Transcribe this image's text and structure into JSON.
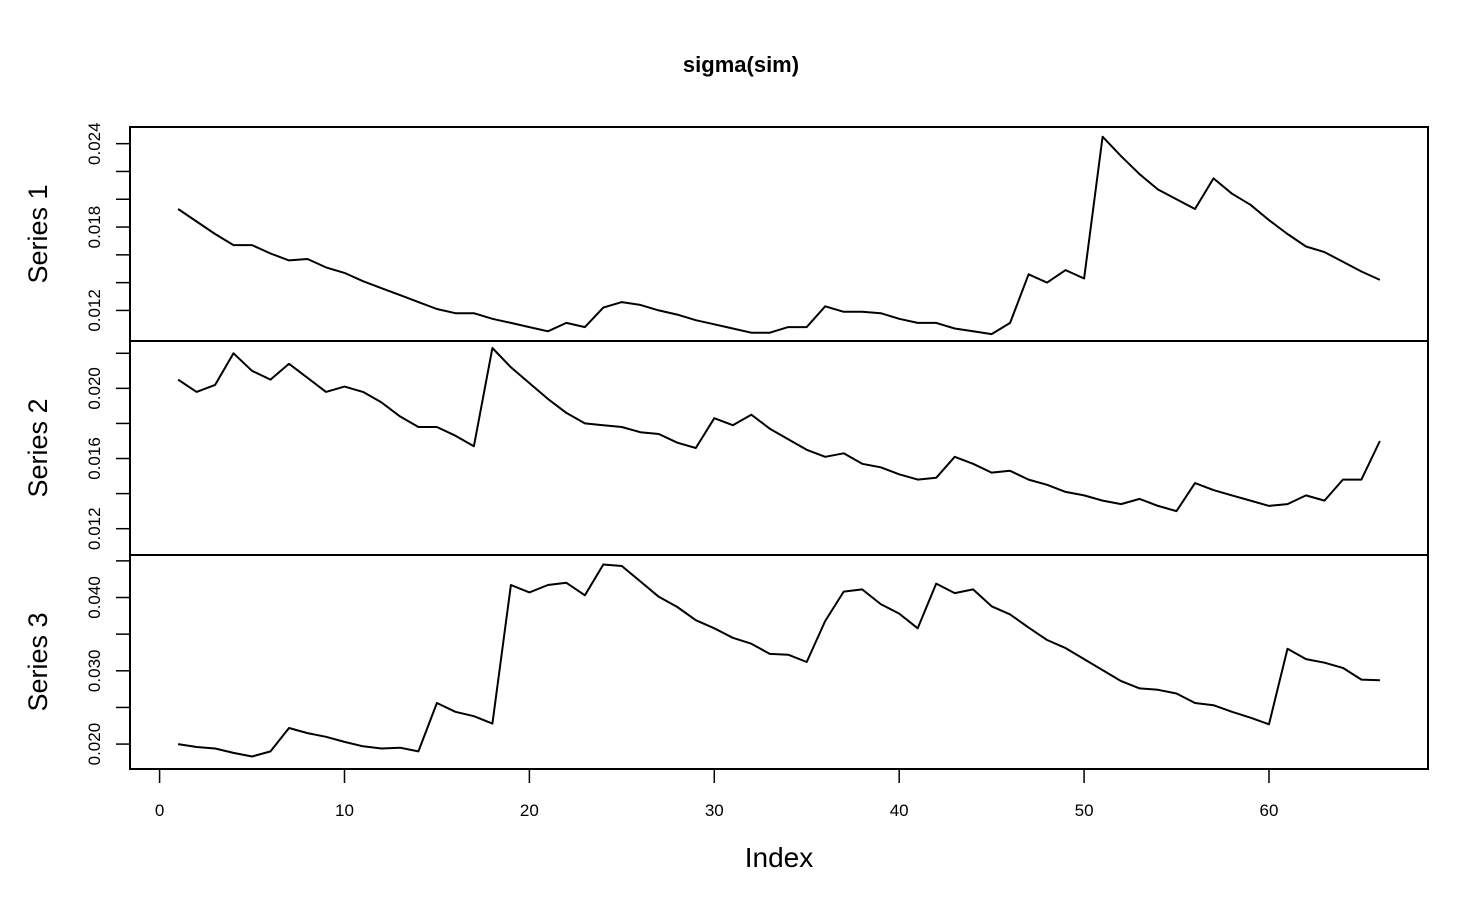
{
  "chart_data": {
    "type": "line",
    "title": "sigma(sim)",
    "xlabel": "Index",
    "xlim": [
      -1.6,
      68.6
    ],
    "xticks": [
      0,
      10,
      20,
      30,
      40,
      50,
      60
    ],
    "x": [
      1,
      2,
      3,
      4,
      5,
      6,
      7,
      8,
      9,
      10,
      11,
      12,
      13,
      14,
      15,
      16,
      17,
      18,
      19,
      20,
      21,
      22,
      23,
      24,
      25,
      26,
      27,
      28,
      29,
      30,
      31,
      32,
      33,
      34,
      35,
      36,
      37,
      38,
      39,
      40,
      41,
      42,
      43,
      44,
      45,
      46,
      47,
      48,
      49,
      50,
      51,
      52,
      53,
      54,
      55,
      56,
      57,
      58,
      59,
      60,
      61,
      62,
      63,
      64,
      65,
      66
    ],
    "grid": false,
    "series": [
      {
        "name": "Series 1",
        "ylim": [
          0.0098,
          0.0252
        ],
        "major_ticks": [
          "0.012",
          "0.018",
          "0.024"
        ],
        "minor_ticks": [
          0.014,
          0.016,
          0.02,
          0.022
        ],
        "values": [
          0.0193,
          0.0184,
          0.0175,
          0.0167,
          0.0167,
          0.0161,
          0.0156,
          0.0157,
          0.0151,
          0.0147,
          0.0141,
          0.0136,
          0.0131,
          0.0126,
          0.0121,
          0.0118,
          0.0118,
          0.0114,
          0.0111,
          0.0108,
          0.0105,
          0.0111,
          0.0108,
          0.0122,
          0.0126,
          0.0124,
          0.012,
          0.0117,
          0.0113,
          0.011,
          0.0107,
          0.0104,
          0.0104,
          0.0108,
          0.0108,
          0.0123,
          0.0119,
          0.0119,
          0.0118,
          0.0114,
          0.0111,
          0.0111,
          0.0107,
          0.0105,
          0.0103,
          0.0111,
          0.0146,
          0.014,
          0.0149,
          0.0143,
          0.0245,
          0.0231,
          0.0218,
          0.0207,
          0.02,
          0.0193,
          0.0215,
          0.0204,
          0.0196,
          0.0185,
          0.0175,
          0.0166,
          0.0162,
          0.0155,
          0.0148,
          0.0142
        ]
      },
      {
        "name": "Series 2",
        "ylim": [
          0.0105,
          0.0227
        ],
        "major_ticks": [
          "0.012",
          "0.016",
          "0.020"
        ],
        "minor_ticks": [
          0.014,
          0.018,
          0.022
        ],
        "values": [
          0.0205,
          0.0198,
          0.0202,
          0.022,
          0.021,
          0.0205,
          0.0214,
          0.0206,
          0.0198,
          0.0201,
          0.0198,
          0.0192,
          0.0184,
          0.0178,
          0.0178,
          0.0173,
          0.0167,
          0.0223,
          0.0212,
          0.0203,
          0.0194,
          0.0186,
          0.018,
          0.0179,
          0.0178,
          0.0175,
          0.0174,
          0.0169,
          0.0166,
          0.0183,
          0.0179,
          0.0185,
          0.0177,
          0.0171,
          0.0165,
          0.0161,
          0.0163,
          0.0157,
          0.0155,
          0.0151,
          0.0148,
          0.0149,
          0.0161,
          0.0157,
          0.0152,
          0.0153,
          0.0148,
          0.0145,
          0.0141,
          0.0139,
          0.0136,
          0.0134,
          0.0137,
          0.0133,
          0.013,
          0.0146,
          0.0142,
          0.0139,
          0.0136,
          0.0133,
          0.0134,
          0.0139,
          0.0136,
          0.0148,
          0.0148,
          0.017
        ]
      },
      {
        "name": "Series 3",
        "ylim": [
          0.0166,
          0.0458
        ],
        "major_ticks": [
          "0.020",
          "0.030",
          "0.040"
        ],
        "minor_ticks": [
          0.025,
          0.035,
          0.045
        ],
        "values": [
          0.02,
          0.0196,
          0.0194,
          0.0188,
          0.0183,
          0.019,
          0.0222,
          0.0215,
          0.021,
          0.0203,
          0.0197,
          0.0194,
          0.0195,
          0.019,
          0.0256,
          0.0244,
          0.0238,
          0.0228,
          0.0417,
          0.0407,
          0.0417,
          0.042,
          0.0403,
          0.0445,
          0.0443,
          0.0422,
          0.0401,
          0.0387,
          0.0369,
          0.0358,
          0.0345,
          0.0337,
          0.0323,
          0.0322,
          0.0312,
          0.0368,
          0.0408,
          0.0411,
          0.0391,
          0.0378,
          0.0358,
          0.0419,
          0.0406,
          0.0411,
          0.0388,
          0.0377,
          0.0359,
          0.0342,
          0.0331,
          0.0316,
          0.0301,
          0.0286,
          0.0276,
          0.0274,
          0.0269,
          0.0256,
          0.0253,
          0.0244,
          0.0236,
          0.0227,
          0.033,
          0.0316,
          0.0311,
          0.0304,
          0.0288,
          0.0287
        ]
      }
    ]
  }
}
